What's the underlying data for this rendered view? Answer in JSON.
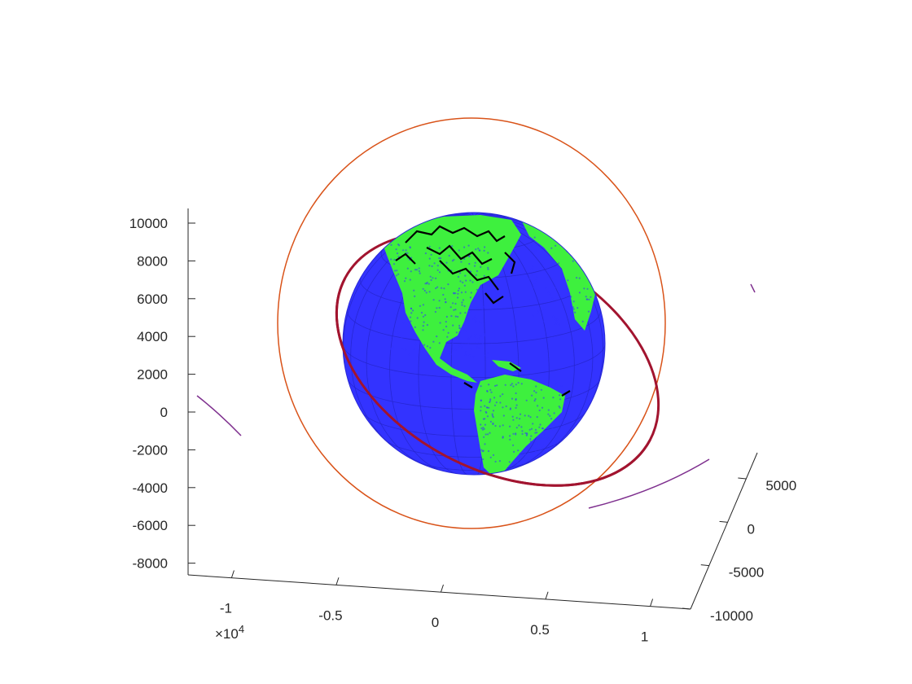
{
  "chart_data": {
    "type": "3d-surface-with-orbits",
    "title": "",
    "view": "3d",
    "grid": false,
    "axes": {
      "x": {
        "lim": [
          -12000,
          12000
        ],
        "ticks": [
          -10000,
          -5000,
          0,
          5000,
          10000
        ],
        "tick_labels": [
          "-1",
          "-0.5",
          "0",
          "0.5",
          "1"
        ],
        "exponent_label": "×10",
        "exponent_power": "4"
      },
      "y": {
        "lim": [
          -10000,
          8000
        ],
        "ticks": [
          -10000,
          -5000,
          0,
          5000
        ],
        "tick_labels": [
          "-10000",
          "-5000",
          "0",
          "5000"
        ]
      },
      "z": {
        "lim": [
          -9000,
          10500
        ],
        "ticks": [
          -8000,
          -6000,
          -4000,
          -2000,
          0,
          2000,
          4000,
          6000,
          8000,
          10000
        ],
        "tick_labels": [
          "-8000",
          "-6000",
          "-4000",
          "-2000",
          "0",
          "2000",
          "4000",
          "6000",
          "8000",
          "10000"
        ]
      }
    },
    "series": [
      {
        "kind": "sphere",
        "radius": 6371,
        "ocean_color": "#3333ff",
        "land_color": "#3ef03e",
        "coast_color": "#000000"
      },
      {
        "kind": "orbit",
        "color": "#d95319"
      },
      {
        "kind": "orbit",
        "color": "#a2142f"
      },
      {
        "kind": "orbit",
        "color": "#7e2f8e"
      }
    ]
  }
}
